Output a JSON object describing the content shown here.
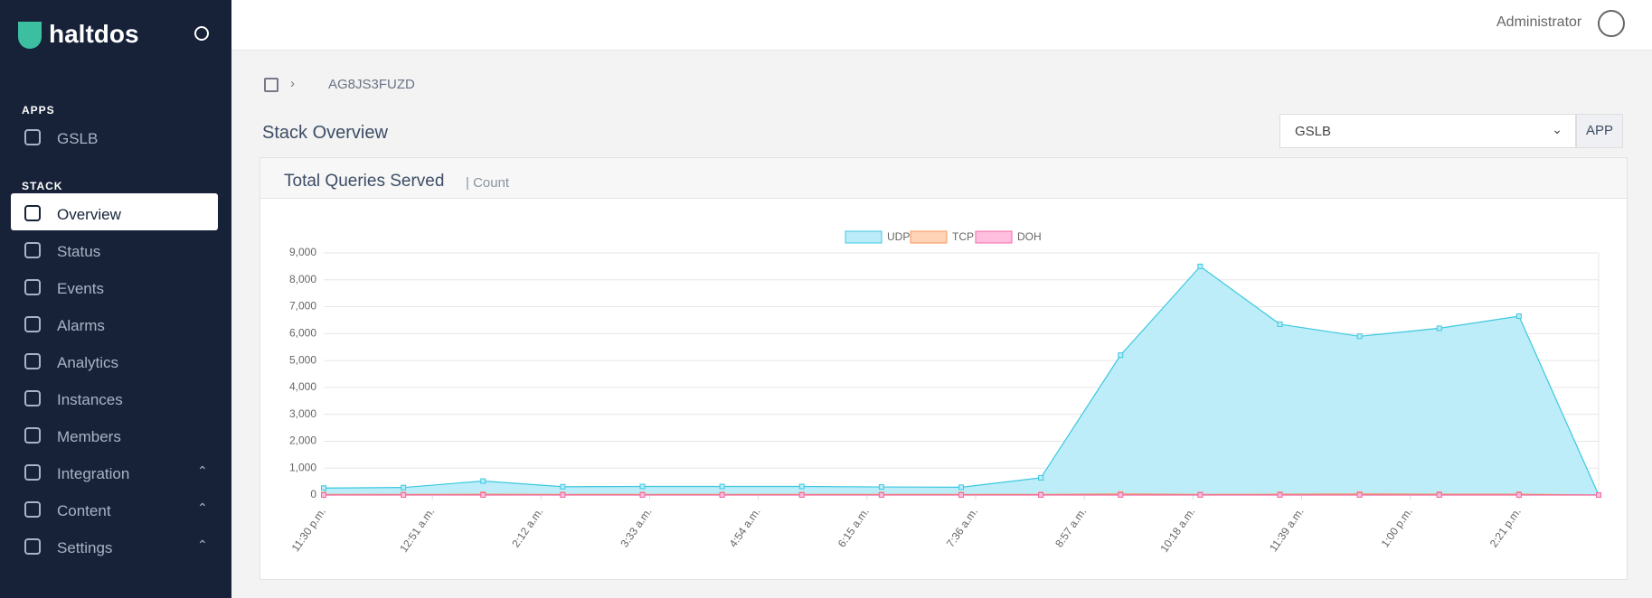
{
  "header": {
    "brand": "haltdos",
    "user": "Administrator"
  },
  "sidebar": {
    "sections": [
      {
        "title": "APPS",
        "items": [
          "GSLB"
        ]
      },
      {
        "title": "STACK",
        "items": [
          "Overview",
          "Status",
          "Events",
          "Alarms",
          "Analytics",
          "Instances",
          "Members",
          "Integration",
          "Content",
          "Settings"
        ]
      }
    ]
  },
  "breadcrumb": {
    "current": "AG8JS3FUZD"
  },
  "page_title": "Stack Overview",
  "select": {
    "value": "GSLB",
    "button": "APP"
  },
  "chart_data": {
    "type": "area",
    "title": "Total Queries Served",
    "subtitle": "| Count",
    "x": [
      0,
      59.4,
      118.8,
      178.2,
      237.6,
      297,
      356.4,
      415.8,
      475.2,
      534.6,
      594,
      653.4,
      712.8,
      772.2,
      831.6,
      891,
      950.4
    ],
    "xlim": [
      0,
      950.4
    ],
    "xticks": [
      {
        "value": 0,
        "label": "11:30 p.m."
      },
      {
        "value": 81,
        "label": "12:51 a.m."
      },
      {
        "value": 162,
        "label": "2:12 a.m."
      },
      {
        "value": 243,
        "label": "3:33 a.m."
      },
      {
        "value": 324,
        "label": "4:54 a.m."
      },
      {
        "value": 405,
        "label": "6:15 a.m."
      },
      {
        "value": 486,
        "label": "7:36 a.m."
      },
      {
        "value": 567,
        "label": "8:57 a.m."
      },
      {
        "value": 648,
        "label": "10:18 a.m."
      },
      {
        "value": 729,
        "label": "11:39 a.m."
      },
      {
        "value": 810,
        "label": "1:00 p.m."
      },
      {
        "value": 891,
        "label": "2:21 p.m."
      }
    ],
    "ylim": [
      0,
      9000
    ],
    "yticks": [
      0,
      {
        "value": 1000,
        "label": "1,000"
      },
      {
        "value": 2000,
        "label": "2,000"
      },
      {
        "value": 3000,
        "label": "3,000"
      },
      {
        "value": 4000,
        "label": "4,000"
      },
      {
        "value": 5000,
        "label": "5,000"
      },
      {
        "value": 6000,
        "label": "6,000"
      },
      {
        "value": 7000,
        "label": "7,000"
      },
      {
        "value": 8000,
        "label": "8,000"
      },
      {
        "value": 9000,
        "label": "9,000"
      }
    ],
    "grid": true,
    "legend": "top",
    "series": [
      {
        "name": "UDP",
        "color": "#3cc8e0",
        "fill": "#b9ecf8",
        "values": [
          260,
          280,
          520,
          310,
          320,
          320,
          320,
          300,
          290,
          640,
          5200,
          8500,
          6350,
          5900,
          6200,
          6650,
          0
        ]
      },
      {
        "name": "TCP",
        "color": "#f4945a",
        "fill": "#ffd3b6",
        "values": [
          20,
          20,
          30,
          20,
          20,
          20,
          20,
          20,
          20,
          20,
          40,
          20,
          30,
          40,
          30,
          30,
          0
        ]
      },
      {
        "name": "DOH",
        "color": "#f06aa8",
        "fill": "#ffbede",
        "values": [
          0,
          0,
          0,
          0,
          0,
          0,
          0,
          0,
          0,
          0,
          0,
          0,
          0,
          0,
          0,
          0,
          0
        ]
      }
    ]
  }
}
